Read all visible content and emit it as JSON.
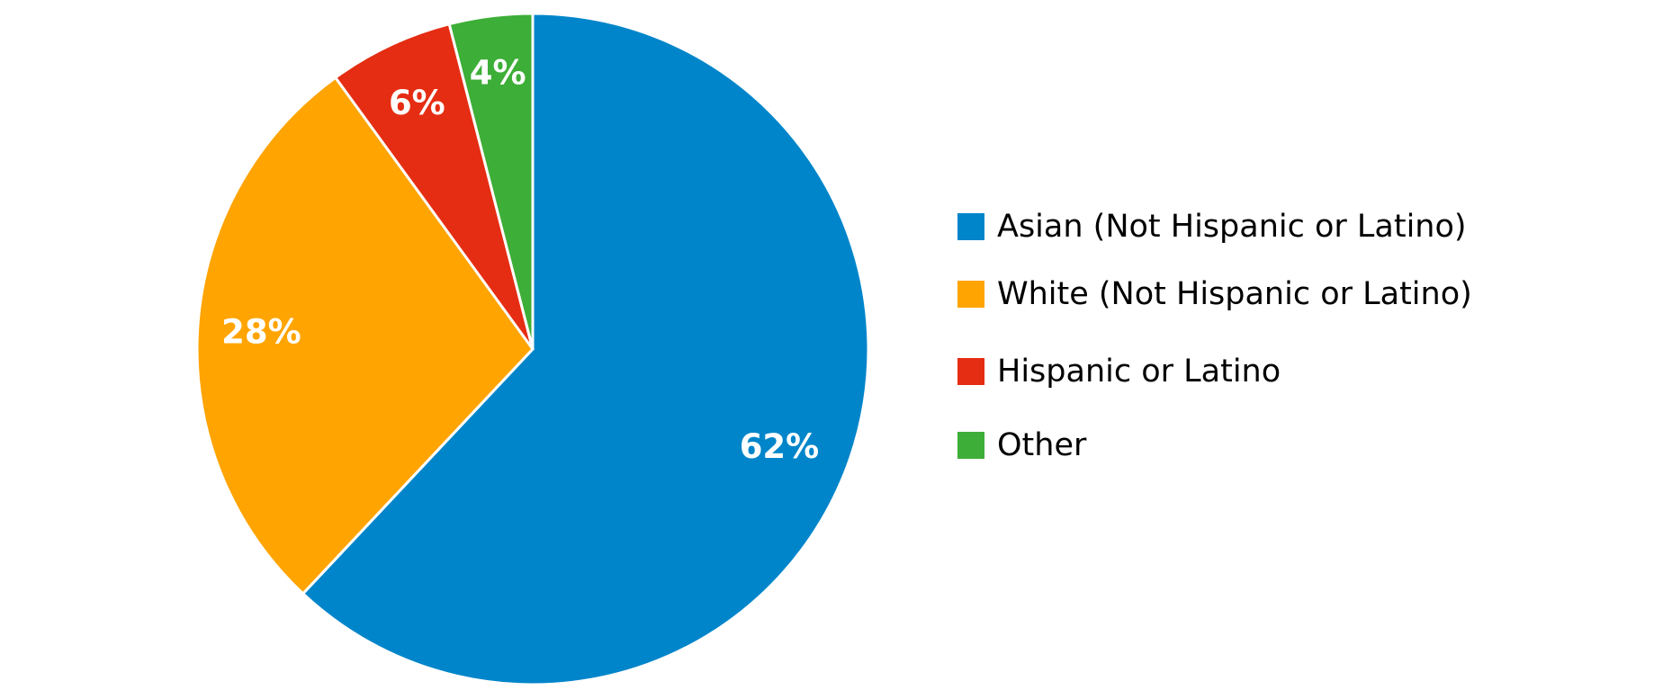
{
  "chart_data": {
    "type": "pie",
    "categories": [
      "Asian (Not Hispanic or Latino)",
      "White (Not Hispanic or Latino)",
      "Hispanic or Latino",
      "Other"
    ],
    "values": [
      62,
      28,
      6,
      4
    ],
    "labels": [
      "62%",
      "28%",
      "6%",
      "4%"
    ],
    "colors": [
      "#0085CA",
      "#FFA400",
      "#E52D13",
      "#3DAE37"
    ],
    "start_angle_deg": 0,
    "direction": "clockwise",
    "legend_position": "right",
    "title": ""
  }
}
